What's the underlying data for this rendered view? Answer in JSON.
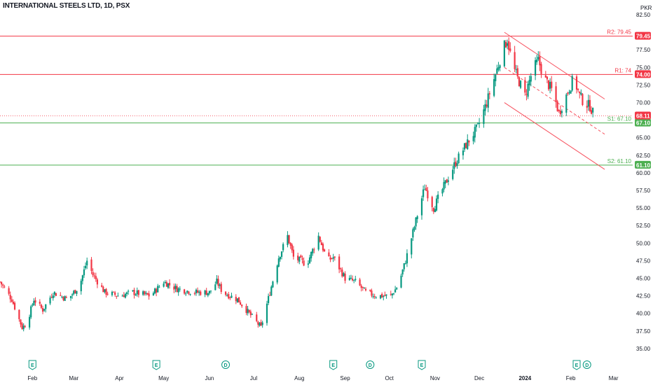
{
  "header": {
    "title": "INTERNATIONAL STEELS LTD, 1D, PSX"
  },
  "colors": {
    "up": "#089981",
    "down": "#f23645",
    "resistance": "#f23645",
    "support": "#4caf50",
    "current": "#f23645",
    "channel": "#f7525f"
  },
  "price_axis": {
    "currency": "PKR"
  },
  "levels": [
    {
      "name": "R2",
      "label": "R2: 79.45",
      "value": 79.45,
      "tag": "79.45",
      "kind": "resistance"
    },
    {
      "name": "R1",
      "label": "R1: 74",
      "value": 74.0,
      "tag": "74.00",
      "kind": "resistance"
    },
    {
      "name": "S1",
      "label": "S1: 67.10",
      "value": 67.1,
      "tag": "67.10",
      "kind": "support"
    },
    {
      "name": "S2",
      "label": "S2: 61.10",
      "value": 61.1,
      "tag": "61.10",
      "kind": "support"
    }
  ],
  "current_price": {
    "value": 68.11,
    "tag": "68.11"
  },
  "event_markers": [
    {
      "type": "E",
      "date": "2023-02-01"
    },
    {
      "type": "E",
      "date": "2023-04-26"
    },
    {
      "type": "D",
      "date": "2023-06-12"
    },
    {
      "type": "E",
      "date": "2023-08-24"
    },
    {
      "type": "D",
      "date": "2023-09-18"
    },
    {
      "type": "E",
      "date": "2023-10-23"
    },
    {
      "type": "E",
      "date": "2024-02-05"
    },
    {
      "type": "D",
      "date": "2024-02-12"
    }
  ],
  "chart_data": {
    "type": "candlestick",
    "title": "INTERNATIONAL STEELS LTD, 1D, PSX",
    "x_axis_ticks": [
      {
        "label": "Feb",
        "date": "2023-02-01"
      },
      {
        "label": "Mar",
        "date": "2023-03-01"
      },
      {
        "label": "Apr",
        "date": "2023-04-01"
      },
      {
        "label": "May",
        "date": "2023-05-01"
      },
      {
        "label": "Jun",
        "date": "2023-06-01"
      },
      {
        "label": "Jul",
        "date": "2023-07-01"
      },
      {
        "label": "Aug",
        "date": "2023-08-01"
      },
      {
        "label": "Sep",
        "date": "2023-09-01"
      },
      {
        "label": "Oct",
        "date": "2023-10-01"
      },
      {
        "label": "Nov",
        "date": "2023-11-01"
      },
      {
        "label": "Dec",
        "date": "2023-12-01"
      },
      {
        "label": "2024",
        "date": "2024-01-01",
        "bold": true
      },
      {
        "label": "Feb",
        "date": "2024-02-01"
      },
      {
        "label": "Mar",
        "date": "2024-03-01"
      }
    ],
    "x_range": [
      "2023-01-10",
      "2024-03-14"
    ],
    "y_range": [
      33.6,
      83.2
    ],
    "y_ticks": [
      35.0,
      37.5,
      40.0,
      42.5,
      45.0,
      47.5,
      50.0,
      52.5,
      55.0,
      57.5,
      60.0,
      62.5,
      65.0,
      70.0,
      72.5,
      75.0,
      77.5,
      82.5
    ],
    "close_path": [
      [
        "2023-01-10",
        44.5
      ],
      [
        "2023-01-18",
        42.0
      ],
      [
        "2023-01-25",
        38.0
      ],
      [
        "2023-01-28",
        38.5
      ],
      [
        "2023-02-02",
        42.0
      ],
      [
        "2023-02-08",
        40.5
      ],
      [
        "2023-02-15",
        43.0
      ],
      [
        "2023-02-25",
        42.0
      ],
      [
        "2023-03-05",
        44.0
      ],
      [
        "2023-03-10",
        47.5
      ],
      [
        "2023-03-14",
        45.5
      ],
      [
        "2023-03-22",
        43.0
      ],
      [
        "2023-04-01",
        42.5
      ],
      [
        "2023-04-10",
        43.0
      ],
      [
        "2023-04-22",
        42.5
      ],
      [
        "2023-05-01",
        44.5
      ],
      [
        "2023-05-10",
        43.5
      ],
      [
        "2023-05-22",
        43.0
      ],
      [
        "2023-06-01",
        43.0
      ],
      [
        "2023-06-06",
        44.5
      ],
      [
        "2023-06-10",
        43.0
      ],
      [
        "2023-06-20",
        42.0
      ],
      [
        "2023-06-28",
        40.0
      ],
      [
        "2023-07-06",
        38.0
      ],
      [
        "2023-07-12",
        43.0
      ],
      [
        "2023-07-18",
        48.0
      ],
      [
        "2023-07-24",
        51.0
      ],
      [
        "2023-07-28",
        48.0
      ],
      [
        "2023-08-06",
        47.0
      ],
      [
        "2023-08-14",
        51.0
      ],
      [
        "2023-08-20",
        47.5
      ],
      [
        "2023-08-24",
        48.0
      ],
      [
        "2023-09-01",
        45.0
      ],
      [
        "2023-09-08",
        44.5
      ],
      [
        "2023-09-15",
        43.0
      ],
      [
        "2023-09-22",
        42.5
      ],
      [
        "2023-10-02",
        42.5
      ],
      [
        "2023-10-07",
        44.0
      ],
      [
        "2023-10-12",
        47.5
      ],
      [
        "2023-10-20",
        54.0
      ],
      [
        "2023-10-25",
        58.0
      ],
      [
        "2023-10-31",
        55.0
      ],
      [
        "2023-11-08",
        58.5
      ],
      [
        "2023-11-15",
        61.5
      ],
      [
        "2023-11-22",
        64.0
      ],
      [
        "2023-11-30",
        66.5
      ],
      [
        "2023-12-06",
        70.0
      ],
      [
        "2023-12-12",
        74.0
      ],
      [
        "2023-12-17",
        77.5
      ],
      [
        "2023-12-20",
        79.0
      ],
      [
        "2023-12-24",
        75.0
      ],
      [
        "2024-01-01",
        71.0
      ],
      [
        "2024-01-06",
        74.5
      ],
      [
        "2024-01-10",
        76.0
      ],
      [
        "2024-01-14",
        73.5
      ],
      [
        "2024-01-20",
        71.5
      ],
      [
        "2024-01-24",
        68.5
      ],
      [
        "2024-01-30",
        71.5
      ],
      [
        "2024-02-03",
        73.5
      ],
      [
        "2024-02-07",
        71.0
      ],
      [
        "2024-02-10",
        70.0
      ],
      [
        "2024-02-14",
        69.5
      ],
      [
        "2024-02-17",
        68.1
      ]
    ],
    "channel": {
      "upper": [
        [
          "2023-12-18",
          80.0
        ],
        [
          "2024-02-24",
          70.5
        ]
      ],
      "middle": [
        [
          "2023-12-18",
          75.0
        ],
        [
          "2024-02-24",
          65.5
        ]
      ],
      "lower": [
        [
          "2023-12-18",
          70.0
        ],
        [
          "2024-02-24",
          60.5
        ]
      ]
    }
  }
}
